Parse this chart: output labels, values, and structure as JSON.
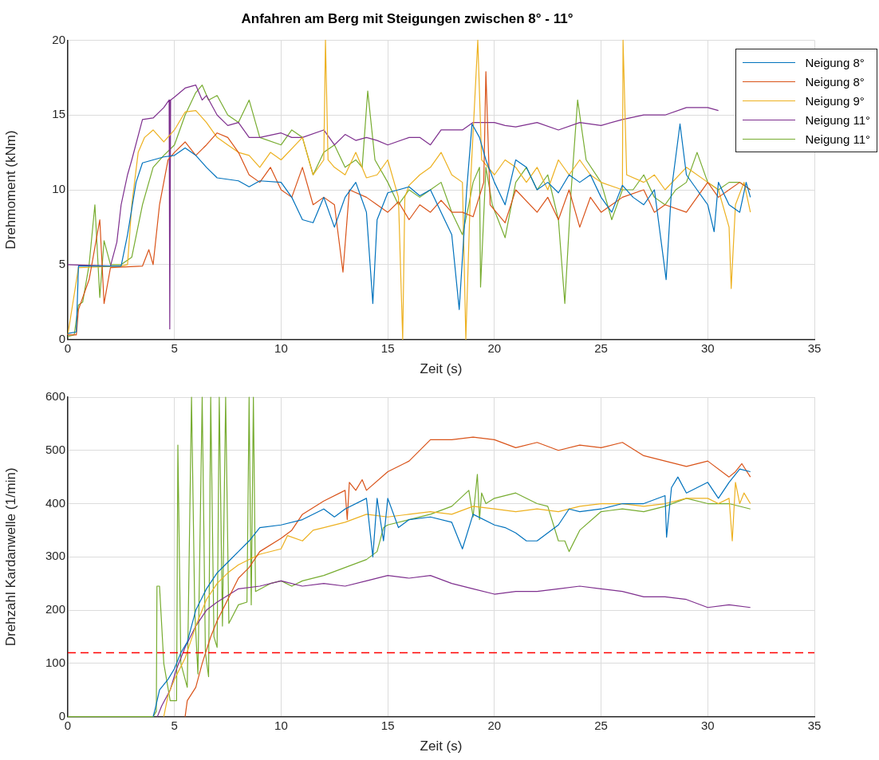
{
  "chart_data": [
    {
      "type": "line",
      "title": "Anfahren am Berg mit Steigungen zwischen 8° - 11°",
      "xlabel": "Zeit (s)",
      "ylabel": "Drehmoment (kNm)",
      "xlim": [
        0,
        35
      ],
      "xticks": [
        0,
        5,
        10,
        15,
        20,
        25,
        30,
        35
      ],
      "ylim": [
        0,
        20
      ],
      "yticks": [
        0,
        5,
        10,
        15,
        20
      ],
      "grid": true,
      "legend": "top right",
      "series": [
        {
          "name": "Neigung 8°",
          "color": "#0072bd",
          "x": [
            0,
            0.4,
            0.5,
            2.5,
            2.8,
            3.2,
            3.5,
            4,
            4.5,
            5,
            5.5,
            6,
            6.5,
            7,
            8,
            8.5,
            9,
            10,
            10.5,
            11,
            11.5,
            12,
            12.5,
            13,
            13.5,
            14,
            14.3,
            14.5,
            15,
            15.5,
            16,
            16.5,
            17,
            17.5,
            18,
            18.35,
            18.7,
            18.95,
            19.3,
            19.6,
            20,
            20.5,
            21,
            21.5,
            22,
            22.5,
            23,
            23.5,
            24,
            24.5,
            25,
            25.5,
            26,
            26.5,
            27,
            27.5,
            28.05,
            28.3,
            28.7,
            29,
            29.5,
            30,
            30.3,
            30.5,
            31,
            31.5,
            31.8,
            32
          ],
          "values": [
            0.4,
            0.5,
            4.9,
            4.9,
            7,
            10.5,
            11.8,
            12,
            12.2,
            12.3,
            12.8,
            12.3,
            11.5,
            10.8,
            10.6,
            10.2,
            10.6,
            10.5,
            9.5,
            8,
            7.8,
            9.5,
            7.5,
            9.5,
            10.5,
            8.5,
            2.4,
            8,
            9.8,
            10,
            10.2,
            9.6,
            10,
            8.5,
            7,
            2,
            10,
            14.4,
            13.5,
            12,
            10.5,
            9,
            12,
            11.5,
            10,
            10.5,
            9.8,
            11,
            10.5,
            11,
            9.5,
            8.5,
            10.3,
            9.5,
            9,
            10,
            4,
            10,
            14.4,
            11,
            10,
            9,
            7.2,
            10.5,
            9,
            8.5,
            10.5,
            9.5
          ]
        },
        {
          "name": "Neigung 8°",
          "color": "#d95319",
          "x": [
            0,
            0.4,
            0.5,
            1,
            1.5,
            1.7,
            2,
            3.5,
            3.8,
            4,
            4.3,
            4.7,
            5,
            5.5,
            6,
            6.5,
            7,
            7.5,
            8,
            8.5,
            9,
            9.5,
            10,
            10.5,
            11,
            11.5,
            12,
            12.5,
            12.9,
            13.2,
            14,
            15,
            15.5,
            16,
            16.5,
            17,
            17.5,
            18,
            18.5,
            19,
            19.5,
            19.6,
            19.8,
            20.5,
            21,
            22,
            22.5,
            23,
            23.5,
            24,
            24.5,
            25,
            26,
            27,
            27.5,
            28,
            29,
            29.5,
            30,
            30.5,
            31,
            31.5,
            32
          ],
          "values": [
            0.3,
            0.3,
            2,
            4,
            8,
            2.4,
            4.8,
            4.9,
            6,
            5,
            9,
            12,
            12.5,
            13.2,
            12.3,
            13,
            13.8,
            13.5,
            12.5,
            11,
            10.5,
            11.5,
            10,
            9.5,
            11.5,
            9,
            9.5,
            9,
            4.5,
            10,
            9.5,
            8.5,
            9.2,
            8,
            9,
            8.5,
            9.3,
            8.5,
            8.5,
            8.2,
            10.5,
            17.9,
            9,
            7.8,
            10,
            8.5,
            9.5,
            8,
            10,
            7.5,
            9.5,
            8.5,
            9.5,
            10,
            8.5,
            9,
            8.5,
            9.5,
            10.5,
            9.5,
            10,
            10.5,
            10
          ]
        },
        {
          "name": "Neigung 9°",
          "color": "#edb120",
          "x": [
            0,
            0.5,
            2.5,
            2.8,
            3,
            3.3,
            3.6,
            4,
            4.5,
            5,
            5.5,
            6,
            6.5,
            7,
            7.5,
            8,
            8.5,
            9,
            9.5,
            10,
            11,
            11.5,
            12,
            12.08,
            12.2,
            12.5,
            13,
            13.5,
            14,
            14.5,
            15,
            15.5,
            15.7,
            15.8,
            16,
            16.5,
            17,
            17.5,
            18,
            18.5,
            18.66,
            18.9,
            19.22,
            19.4,
            20,
            20.5,
            21,
            21.5,
            22,
            22.5,
            23,
            23.5,
            24,
            24.5,
            25,
            26,
            26.03,
            26.2,
            27,
            27.5,
            28,
            29,
            30,
            30.5,
            31,
            31.1,
            31.3,
            31.7,
            32
          ],
          "values": [
            0.3,
            4.8,
            4.9,
            5,
            9,
            12.5,
            13.5,
            14,
            13.2,
            14,
            15.2,
            15.3,
            14.5,
            13.5,
            13,
            12.5,
            12.3,
            11.5,
            12.5,
            12,
            13.5,
            11,
            12,
            20,
            12,
            11.5,
            11,
            12.5,
            10.8,
            11,
            12,
            9.5,
            0,
            9.5,
            10.3,
            11,
            11.5,
            12.5,
            11,
            10.5,
            0,
            11,
            20,
            12,
            11,
            12,
            11.5,
            10.5,
            11.5,
            10,
            12,
            11,
            12,
            11,
            10.5,
            10,
            20,
            11,
            10.5,
            11,
            10,
            11.5,
            10.5,
            10,
            7.5,
            3.4,
            9,
            10.5,
            8.5
          ]
        },
        {
          "name": "Neigung 11°",
          "color": "#7e2f8e",
          "x": [
            0,
            2,
            2.3,
            2.5,
            2.8,
            3,
            3.5,
            4,
            4.5,
            4.75,
            4.78,
            4.82,
            5,
            5.5,
            6,
            6.3,
            6.5,
            7,
            7.5,
            8,
            8.5,
            9,
            10,
            10.5,
            11,
            12,
            12.5,
            13,
            13.5,
            14,
            14.5,
            15,
            16,
            16.5,
            17,
            17.5,
            18,
            18.5,
            19,
            20,
            20.5,
            21,
            22,
            23,
            24,
            25,
            26,
            27,
            28,
            29,
            30,
            30.5
          ],
          "values": [
            5,
            4.9,
            6.5,
            9,
            11,
            12,
            14.7,
            14.8,
            15.5,
            16,
            0.7,
            16,
            16.2,
            16.8,
            17,
            16,
            16.3,
            15,
            14.3,
            14.5,
            13.5,
            13.5,
            13.8,
            13.5,
            13.5,
            14,
            13,
            13.7,
            13.3,
            13.5,
            13.3,
            13,
            13.5,
            13.5,
            13,
            14,
            14,
            14,
            14.5,
            14.5,
            14.3,
            14.2,
            14.5,
            14,
            14.5,
            14.3,
            14.7,
            15,
            15,
            15.5,
            15.5,
            15.3
          ]
        },
        {
          "name": "Neigung 11°",
          "color": "#77ac30",
          "x": [
            0,
            0.3,
            0.5,
            0.7,
            1,
            1.27,
            1.5,
            1.7,
            2,
            2.5,
            3,
            3.5,
            4,
            4.5,
            5,
            5.5,
            6,
            6.3,
            6.6,
            7,
            7.5,
            8,
            8.5,
            9,
            10,
            10.5,
            11,
            11.5,
            12,
            12.5,
            13,
            13.5,
            13.8,
            14.06,
            14.4,
            15,
            15.5,
            16,
            16.5,
            17,
            17.5,
            18,
            18.5,
            18.8,
            19,
            19.3,
            19.35,
            19.6,
            19.9,
            20.5,
            21,
            21.5,
            22,
            22.5,
            23,
            23.3,
            23.6,
            23.9,
            24.3,
            25,
            25.5,
            26,
            26.5,
            27,
            27.5,
            28,
            28.5,
            29,
            29.5,
            30,
            30.5,
            31,
            31.5,
            32
          ],
          "values": [
            0.2,
            0.3,
            2.3,
            2.5,
            5,
            9,
            2.8,
            6.6,
            5,
            5,
            5.5,
            9,
            11.5,
            12.3,
            13,
            15,
            16.5,
            17,
            16,
            16.3,
            15,
            14.5,
            16,
            13.5,
            13,
            14,
            13.5,
            11,
            12.5,
            13,
            11.5,
            12,
            11.5,
            16.6,
            12,
            10.5,
            9,
            10,
            9.5,
            10,
            10.5,
            8.5,
            7,
            9,
            10.5,
            11.5,
            3.5,
            11.5,
            9,
            6.8,
            10.5,
            11.5,
            10,
            11,
            8,
            2.4,
            10,
            16,
            12,
            10.5,
            8,
            10,
            10,
            11,
            9.5,
            9,
            10,
            10.5,
            12.5,
            10.5,
            10,
            10.5,
            10.5,
            10
          ]
        }
      ]
    },
    {
      "type": "line",
      "xlabel": "Zeit (s)",
      "ylabel": "Drehzahl Kardanwelle (1/min)",
      "xlim": [
        0,
        35
      ],
      "xticks": [
        0,
        5,
        10,
        15,
        20,
        25,
        30,
        35
      ],
      "ylim": [
        0,
        600
      ],
      "yticks": [
        0,
        100,
        200,
        300,
        400,
        500,
        600
      ],
      "grid": true,
      "ref_lines": [
        {
          "axis": "y",
          "value": 120,
          "color": "#ff0000",
          "line_style": "dashed"
        }
      ],
      "series": [
        {
          "color": "#0072bd",
          "x": [
            4,
            4.1,
            4.3,
            4.7,
            5,
            5.3,
            5.6,
            6,
            6.5,
            7,
            7.5,
            8,
            8.5,
            9,
            10,
            11,
            12,
            12.5,
            13,
            14,
            14.3,
            14.5,
            14.8,
            15,
            15.5,
            16,
            17,
            18,
            18.5,
            19,
            20,
            20.5,
            21,
            21.5,
            22,
            23,
            23.5,
            24,
            25,
            26,
            27,
            28,
            28.07,
            28.3,
            28.6,
            29,
            30,
            30.5,
            31,
            31.5,
            32
          ],
          "values": [
            0,
            15,
            50,
            70,
            90,
            120,
            140,
            200,
            240,
            270,
            290,
            310,
            330,
            355,
            360,
            370,
            390,
            375,
            390,
            410,
            300,
            410,
            330,
            410,
            355,
            370,
            375,
            365,
            315,
            380,
            360,
            355,
            345,
            330,
            330,
            360,
            390,
            385,
            390,
            400,
            400,
            415,
            337,
            430,
            450,
            420,
            440,
            410,
            440,
            465,
            460
          ]
        },
        {
          "color": "#d95319",
          "x": [
            5.5,
            5.6,
            6,
            6.3,
            6.7,
            7,
            7.5,
            8,
            8.5,
            9,
            10,
            10.5,
            11,
            12,
            13,
            13.1,
            13.2,
            13.5,
            13.8,
            14,
            15,
            16,
            17,
            18,
            19,
            20,
            21,
            22,
            23,
            24,
            25,
            26,
            27,
            28,
            29,
            30,
            31,
            31.3,
            31.6,
            32
          ],
          "values": [
            0,
            30,
            55,
            100,
            150,
            180,
            220,
            260,
            280,
            310,
            335,
            350,
            380,
            405,
            425,
            370,
            440,
            425,
            445,
            425,
            460,
            480,
            520,
            520,
            525,
            520,
            505,
            515,
            500,
            510,
            505,
            515,
            490,
            480,
            470,
            480,
            450,
            460,
            475,
            450
          ]
        },
        {
          "color": "#edb120",
          "x": [
            4.5,
            4.7,
            5,
            5.5,
            6,
            6.5,
            7,
            7.5,
            8,
            9,
            10,
            10.3,
            11,
            11.5,
            12,
            13,
            14,
            15,
            16,
            17,
            18,
            19,
            20,
            21,
            22,
            23,
            24,
            25,
            26,
            27,
            28,
            29,
            30,
            30.5,
            31,
            31.15,
            31.3,
            31.5,
            31.7,
            32
          ],
          "values": [
            0,
            40,
            70,
            110,
            170,
            220,
            250,
            270,
            285,
            305,
            315,
            340,
            330,
            350,
            355,
            365,
            380,
            375,
            380,
            385,
            380,
            395,
            390,
            385,
            390,
            385,
            395,
            400,
            400,
            395,
            400,
            410,
            410,
            400,
            410,
            330,
            440,
            400,
            420,
            400
          ]
        },
        {
          "color": "#7e2f8e",
          "x": [
            4.2,
            4.4,
            4.8,
            5.1,
            5.5,
            6,
            6.5,
            7,
            8,
            9,
            10,
            11,
            12,
            13,
            14,
            15,
            16,
            17,
            18,
            19,
            20,
            21,
            22,
            23,
            24,
            25,
            26,
            27,
            28,
            29,
            30,
            31,
            32
          ],
          "values": [
            0,
            20,
            50,
            90,
            130,
            170,
            200,
            215,
            240,
            245,
            255,
            245,
            250,
            245,
            255,
            265,
            260,
            265,
            250,
            240,
            230,
            235,
            235,
            240,
            245,
            240,
            235,
            225,
            225,
            220,
            205,
            210,
            205
          ]
        },
        {
          "color": "#77ac30",
          "x": [
            0,
            4,
            4.15,
            4.18,
            4.3,
            4.5,
            4.8,
            5.1,
            5.16,
            5.3,
            5.6,
            5.8,
            5.95,
            6.1,
            6.3,
            6.45,
            6.6,
            6.7,
            6.85,
            7,
            7.1,
            7.25,
            7.4,
            7.55,
            8,
            8.4,
            8.5,
            8.6,
            8.7,
            8.8,
            9.5,
            10,
            10.5,
            11,
            12,
            13,
            14,
            14.5,
            14.8,
            15,
            16,
            17,
            18,
            18.8,
            19,
            19.2,
            19.3,
            19.4,
            19.6,
            20,
            21,
            22,
            22.5,
            23,
            23.3,
            23.5,
            24,
            25,
            26,
            27,
            28,
            29,
            30,
            31,
            32
          ],
          "values": [
            0,
            0,
            10,
            245,
            245,
            100,
            30,
            30,
            510,
            100,
            55,
            600,
            200,
            80,
            600,
            120,
            75,
            600,
            150,
            130,
            600,
            170,
            600,
            175,
            210,
            215,
            600,
            210,
            600,
            235,
            250,
            255,
            245,
            255,
            265,
            280,
            295,
            310,
            355,
            360,
            370,
            380,
            395,
            425,
            375,
            455,
            370,
            420,
            400,
            410,
            420,
            400,
            395,
            330,
            330,
            310,
            350,
            385,
            390,
            385,
            395,
            410,
            400,
            400,
            390
          ]
        }
      ]
    }
  ]
}
